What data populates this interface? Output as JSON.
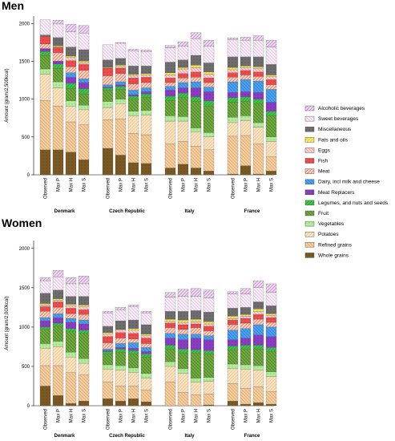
{
  "chart_data": {
    "type": "bar",
    "stacked": true,
    "yticks": [
      0,
      500,
      1000,
      1500,
      2000
    ],
    "ylim": [
      0,
      2100
    ],
    "legend": [
      {
        "name": "Alcoholic beverages",
        "color": "#ead7ee",
        "stroke": "#9a4aa8"
      },
      {
        "name": "Sweet beverages",
        "color": "#f8eef8",
        "stroke": "#d28fd3"
      },
      {
        "name": "Miscellaneous",
        "color": "#6e6e6e",
        "stroke": "#333333"
      },
      {
        "name": "Fats and oils",
        "color": "#f4ea63",
        "stroke": "#c7b200"
      },
      {
        "name": "Eggs",
        "color": "#fbd2d2",
        "stroke": "#e07070"
      },
      {
        "name": "Fish",
        "color": "#ee4c4c",
        "stroke": "#b01010"
      },
      {
        "name": "Meat",
        "color": "#f6c9b9",
        "stroke": "#a05030"
      },
      {
        "name": "Dairy, incl milk and cheese",
        "color": "#4aa0ee",
        "stroke": "#1a60b0"
      },
      {
        "name": "Meat Replacers",
        "color": "#8a3cc2",
        "stroke": "#4b1a7a"
      },
      {
        "name": "Legumes, and nuts and seeds",
        "color": "#3ec24a",
        "stroke": "#1a7a20"
      },
      {
        "name": "Fruit",
        "color": "#6fa83c",
        "stroke": "#2d5a1a"
      },
      {
        "name": "Vegetables",
        "color": "#b2ec9c",
        "stroke": "#5aa040"
      },
      {
        "name": "Potatoes",
        "color": "#fbe2be",
        "stroke": "#d6aa70"
      },
      {
        "name": "Refined grains",
        "color": "#f5cc9c",
        "stroke": "#c08850"
      },
      {
        "name": "Whole grains",
        "color": "#7a5a24",
        "stroke": "#4a3510"
      }
    ],
    "panels": [
      {
        "title": "Men",
        "ylabel": "Amount (gram/2,500kcal)",
        "groups": [
          {
            "country": "Denmark",
            "bars": [
              {
                "label": "Observed",
                "values": [
                  0,
                  200,
                  20,
                  0,
                  0,
                  100,
                  60,
                  0,
                  40,
                  50,
                  180,
                  70,
                  350,
                  650,
                  330
                ]
              },
              {
                "label": "Max P",
                "values": [
                  50,
                  180,
                  110,
                  15,
                  5,
                  70,
                  110,
                  0,
                  40,
                  60,
                  175,
                  80,
                  240,
                  580,
                  330
                ]
              },
              {
                "label": "Max H",
                "values": [
                  100,
                  200,
                  120,
                  20,
                  40,
                  80,
                  80,
                  60,
                  80,
                  70,
                  160,
                  70,
                  210,
                  400,
                  300
                ]
              },
              {
                "label": "Max S",
                "values": [
                  100,
                  220,
                  150,
                  25,
                  20,
                  80,
                  110,
                  50,
                  80,
                  70,
                  150,
                  60,
                  200,
                  460,
                  200
                ]
              }
            ]
          },
          {
            "country": "Czech  Republic",
            "bars": [
              {
                "label": "Observed",
                "values": [
                  0,
                  200,
                  100,
                  10,
                  0,
                  100,
                  120,
                  30,
                  10,
                  30,
                  150,
                  80,
                  160,
                  380,
                  350
                ]
              },
              {
                "label": "Max P",
                "values": [
                  10,
                  200,
                  90,
                  20,
                  20,
                  70,
                  110,
                  40,
                  20,
                  40,
                  130,
                  60,
                  200,
                  480,
                  260
                ]
              },
              {
                "label": "Max H",
                "values": [
                  20,
                  200,
                  110,
                  20,
                  30,
                  80,
                  80,
                  60,
                  20,
                  40,
                  160,
                  60,
                  230,
                  390,
                  160
                ]
              },
              {
                "label": "Max S",
                "values": [
                  20,
                  190,
                  100,
                  20,
                  30,
                  70,
                  70,
                  50,
                  30,
                  50,
                  170,
                  60,
                  260,
                  380,
                  150
                ]
              }
            ]
          },
          {
            "country": "Italy",
            "bars": [
              {
                "label": "Observed",
                "values": [
                  30,
                  190,
                  140,
                  30,
                  40,
                  60,
                  50,
                  50,
                  80,
                  60,
                  200,
                  70,
                  300,
                  320,
                  90
                ]
              },
              {
                "label": "Max P",
                "values": [
                  60,
                  180,
                  100,
                  20,
                  60,
                  60,
                  60,
                  70,
                  70,
                  60,
                  250,
                  60,
                  270,
                  300,
                  140
                ]
              },
              {
                "label": "Max H",
                "values": [
                  80,
                  220,
                  130,
                  30,
                  60,
                  70,
                  60,
                  80,
                  120,
                  60,
                  350,
                  50,
                  190,
                  290,
                  90
                ]
              },
              {
                "label": "Max S",
                "values": [
                  80,
                  220,
                  120,
                  30,
                  50,
                  60,
                  60,
                  60,
                  120,
                  70,
                  350,
                  60,
                  170,
                  280,
                  50
                ]
              }
            ]
          },
          {
            "country": "France",
            "bars": [
              {
                "label": "Observed",
                "values": [
                  20,
                  230,
                  140,
                  30,
                  40,
                  60,
                  60,
                  140,
                  70,
                  60,
                  200,
                  70,
                  180,
                  500,
                  10
                ]
              },
              {
                "label": "Max P",
                "values": [
                  40,
                  220,
                  120,
                  20,
                  40,
                  60,
                  60,
                  160,
                  70,
                  60,
                  190,
                  60,
                  200,
                  400,
                  120
                ]
              },
              {
                "label": "Max H",
                "values": [
                  60,
                  220,
                  130,
                  20,
                  50,
                  60,
                  60,
                  150,
                  90,
                  60,
                  250,
                  60,
                  220,
                  400,
                  10
                ]
              },
              {
                "label": "Max S",
                "values": [
                  90,
                  230,
                  140,
                  20,
                  40,
                  70,
                  60,
                  170,
                  120,
                  60,
                  280,
                  60,
                  200,
                  190,
                  50
                ]
              }
            ]
          }
        ]
      },
      {
        "title": "Women",
        "ylabel": "Amount (gram/2,000kcal)",
        "groups": [
          {
            "country": "Denmark",
            "bars": [
              {
                "label": "Observed",
                "values": [
                  40,
                  160,
                  130,
                  20,
                  20,
                  60,
                  80,
                  40,
                  80,
                  30,
                  180,
                  60,
                  220,
                  260,
                  250
                ]
              },
              {
                "label": "Max P",
                "values": [
                  80,
                  170,
                  110,
                  20,
                  20,
                  70,
                  80,
                  50,
                  70,
                  40,
                  190,
                  70,
                  240,
                  380,
                  130
                ]
              },
              {
                "label": "Max H",
                "values": [
                  80,
                  160,
                  100,
                  20,
                  30,
                  70,
                  60,
                  50,
                  80,
                  40,
                  260,
                  60,
                  200,
                  390,
                  30
                ]
              },
              {
                "label": "Max S",
                "values": [
                  100,
                  160,
                  110,
                  20,
                  40,
                  60,
                  70,
                  50,
                  80,
                  40,
                  320,
                  60,
                  150,
                  330,
                  60
                ]
              }
            ]
          },
          {
            "country": "Czech  Republic",
            "bars": [
              {
                "label": "Observed",
                "values": [
                  20,
                  170,
                  80,
                  20,
                  30,
                  80,
                  80,
                  20,
                  10,
                  30,
                  140,
                  60,
                  160,
                  210,
                  90
                ]
              },
              {
                "label": "Max P",
                "values": [
                  30,
                  140,
                  110,
                  10,
                  30,
                  70,
                  70,
                  50,
                  20,
                  40,
                  170,
                  60,
                  200,
                  190,
                  60
                ]
              },
              {
                "label": "Max H",
                "values": [
                  20,
                  170,
                  110,
                  20,
                  40,
                  70,
                  50,
                  70,
                  30,
                  40,
                  180,
                  60,
                  170,
                  160,
                  90
                ]
              },
              {
                "label": "Max S",
                "values": [
                  20,
                  150,
                  120,
                  20,
                  30,
                  70,
                  50,
                  50,
                  30,
                  40,
                  210,
                  60,
                  150,
                  150,
                  50
                ]
              }
            ]
          },
          {
            "country": "Italy",
            "bars": [
              {
                "label": "Observed",
                "values": [
                  60,
                  180,
                  100,
                  30,
                  20,
                  60,
                  70,
                  60,
                  90,
                  50,
                  160,
                  60,
                  200,
                  300,
                  0
                ]
              },
              {
                "label": "Max P",
                "values": [
                  90,
                  190,
                  110,
                  30,
                  30,
                  60,
                  60,
                  70,
                  120,
                  50,
                  200,
                  60,
                  240,
                  170,
                  0
                ]
              },
              {
                "label": "Max H",
                "values": [
                  100,
                  180,
                  110,
                  30,
                  30,
                  50,
                  80,
                  50,
                  150,
                  40,
                  320,
                  50,
                  160,
                  140,
                  0
                ]
              },
              {
                "label": "Max S",
                "values": [
                  100,
                  180,
                  120,
                  30,
                  30,
                  60,
                  60,
                  50,
                  140,
                  40,
                  300,
                  50,
                  160,
                  140,
                  10
                ]
              }
            ]
          },
          {
            "country": "France",
            "bars": [
              {
                "label": "Observed",
                "values": [
                  30,
                  180,
                  100,
                  30,
                  20,
                  60,
                  70,
                  120,
                  80,
                  50,
                  180,
                  60,
                  190,
                  220,
                  60
                ]
              },
              {
                "label": "Max P",
                "values": [
                  70,
                  170,
                  90,
                  20,
                  30,
                  60,
                  70,
                  120,
                  90,
                  50,
                  200,
                  60,
                  240,
                  200,
                  20
                ]
              },
              {
                "label": "Max H",
                "values": [
                  90,
                  180,
                  90,
                  30,
                  40,
                  60,
                  70,
                  130,
                  130,
                  50,
                  210,
                  60,
                  210,
                  200,
                  40
                ]
              },
              {
                "label": "Max S",
                "values": [
                  110,
                  170,
                  100,
                  20,
                  30,
                  60,
                  60,
                  120,
                  140,
                  50,
                  260,
                  60,
                  190,
                  160,
                  20
                ]
              }
            ]
          }
        ]
      }
    ]
  }
}
